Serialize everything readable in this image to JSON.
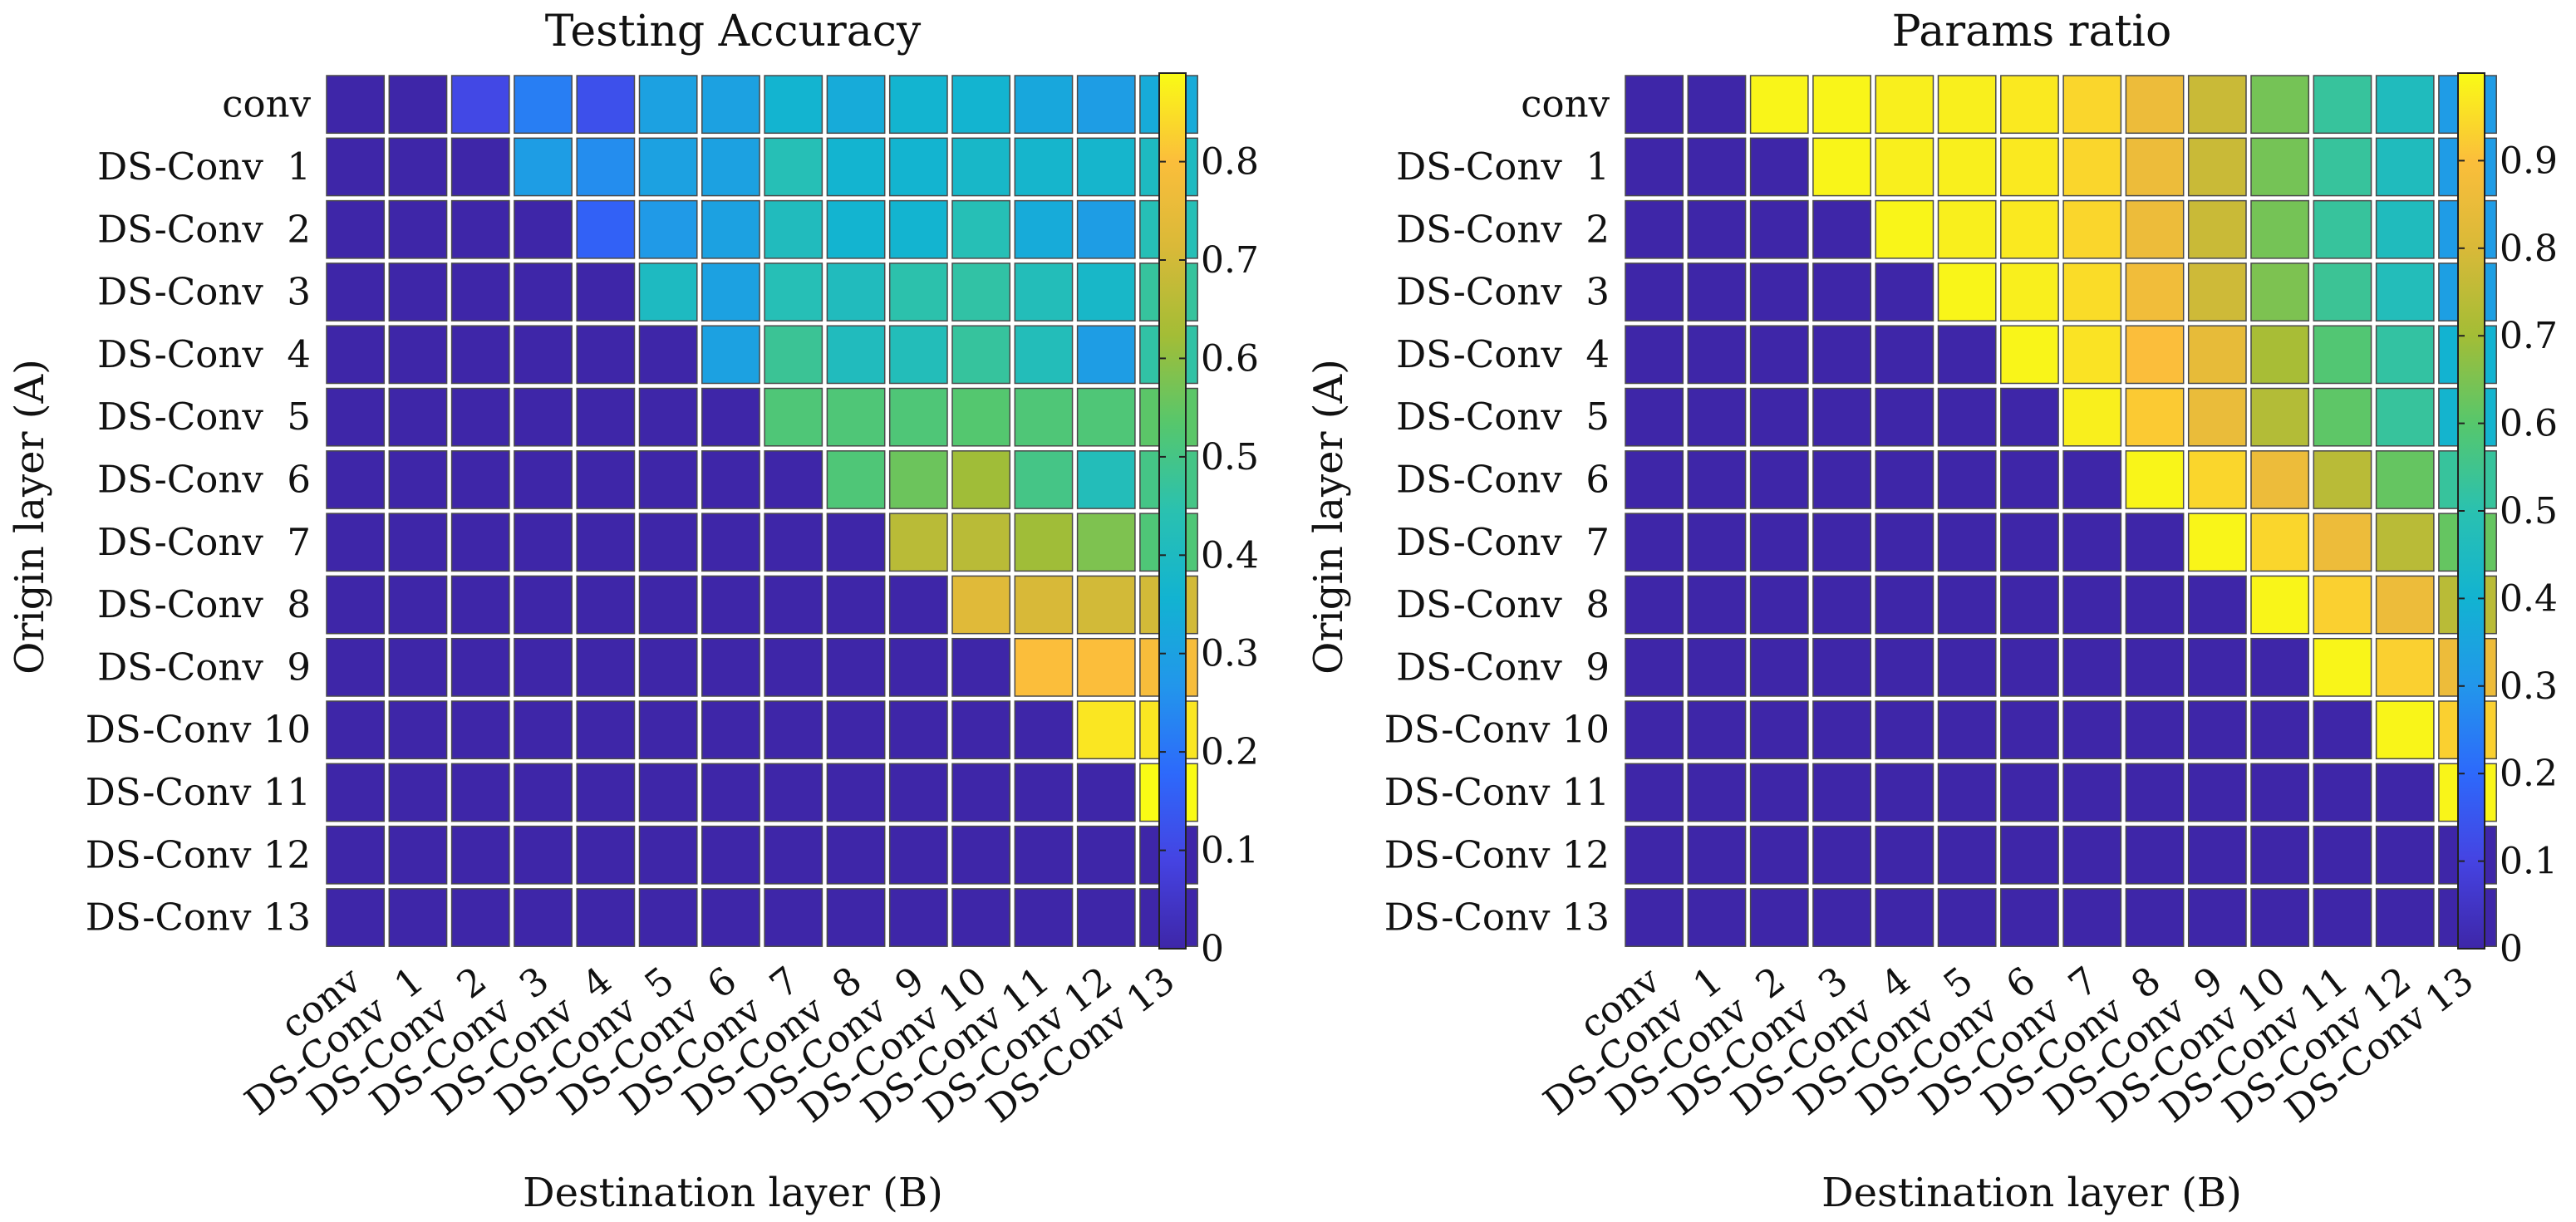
{
  "chart_data": [
    {
      "type": "heatmap",
      "title": "Testing Accuracy",
      "xlabel": "Destination layer (B)",
      "ylabel": "Origin layer (A)",
      "row_labels": [
        "conv",
        "DS-Conv  1",
        "DS-Conv  2",
        "DS-Conv  3",
        "DS-Conv  4",
        "DS-Conv  5",
        "DS-Conv  6",
        "DS-Conv  7",
        "DS-Conv  8",
        "DS-Conv  9",
        "DS-Conv 10",
        "DS-Conv 11",
        "DS-Conv 12",
        "DS-Conv 13"
      ],
      "col_labels": [
        "conv",
        "DS-Conv  1",
        "DS-Conv  2",
        "DS-Conv  3",
        "DS-Conv  4",
        "DS-Conv  5",
        "DS-Conv  6",
        "DS-Conv  7",
        "DS-Conv  8",
        "DS-Conv  9",
        "DS-Conv 10",
        "DS-Conv 11",
        "DS-Conv 12",
        "DS-Conv 13"
      ],
      "clim": [
        0,
        0.89
      ],
      "colorbar_ticks": [
        0,
        0.1,
        0.2,
        0.3,
        0.4,
        0.5,
        0.6,
        0.7,
        0.8
      ],
      "values": [
        [
          0,
          0,
          0.1,
          0.22,
          0.12,
          0.3,
          0.3,
          0.36,
          0.33,
          0.36,
          0.36,
          0.32,
          0.29,
          0.33
        ],
        [
          0,
          0,
          0,
          0.29,
          0.25,
          0.3,
          0.3,
          0.43,
          0.36,
          0.36,
          0.38,
          0.37,
          0.37,
          0.4
        ],
        [
          0,
          0,
          0,
          0,
          0.16,
          0.28,
          0.3,
          0.41,
          0.36,
          0.36,
          0.43,
          0.33,
          0.29,
          0.43
        ],
        [
          0,
          0,
          0,
          0,
          0,
          0.4,
          0.3,
          0.43,
          0.41,
          0.45,
          0.46,
          0.42,
          0.38,
          0.47
        ],
        [
          0,
          0,
          0,
          0,
          0,
          0,
          0.3,
          0.48,
          0.41,
          0.42,
          0.47,
          0.42,
          0.29,
          0.46
        ],
        [
          0,
          0,
          0,
          0,
          0,
          0,
          0,
          0.52,
          0.52,
          0.52,
          0.53,
          0.52,
          0.52,
          0.54
        ],
        [
          0,
          0,
          0,
          0,
          0,
          0,
          0,
          0,
          0.52,
          0.56,
          0.62,
          0.5,
          0.42,
          0.5
        ],
        [
          0,
          0,
          0,
          0,
          0,
          0,
          0,
          0,
          0,
          0.66,
          0.66,
          0.62,
          0.58,
          0.52
        ],
        [
          0,
          0,
          0,
          0,
          0,
          0,
          0,
          0,
          0,
          0,
          0.73,
          0.71,
          0.7,
          0.7
        ],
        [
          0,
          0,
          0,
          0,
          0,
          0,
          0,
          0,
          0,
          0,
          0,
          0.8,
          0.8,
          0.79
        ],
        [
          0,
          0,
          0,
          0,
          0,
          0,
          0,
          0,
          0,
          0,
          0,
          0,
          0.86,
          0.86
        ],
        [
          0,
          0,
          0,
          0,
          0,
          0,
          0,
          0,
          0,
          0,
          0,
          0,
          0,
          0.89
        ],
        [
          0,
          0,
          0,
          0,
          0,
          0,
          0,
          0,
          0,
          0,
          0,
          0,
          0,
          0
        ],
        [
          0,
          0,
          0,
          0,
          0,
          0,
          0,
          0,
          0,
          0,
          0,
          0,
          0,
          0
        ]
      ]
    },
    {
      "type": "heatmap",
      "title": "Params ratio",
      "xlabel": "Destination layer (B)",
      "ylabel": "Origin layer (A)",
      "row_labels": [
        "conv",
        "DS-Conv  1",
        "DS-Conv  2",
        "DS-Conv  3",
        "DS-Conv  4",
        "DS-Conv  5",
        "DS-Conv  6",
        "DS-Conv  7",
        "DS-Conv  8",
        "DS-Conv  9",
        "DS-Conv 10",
        "DS-Conv 11",
        "DS-Conv 12",
        "DS-Conv 13"
      ],
      "col_labels": [
        "conv",
        "DS-Conv  1",
        "DS-Conv  2",
        "DS-Conv  3",
        "DS-Conv  4",
        "DS-Conv  5",
        "DS-Conv  6",
        "DS-Conv  7",
        "DS-Conv  8",
        "DS-Conv  9",
        "DS-Conv 10",
        "DS-Conv 11",
        "DS-Conv 12",
        "DS-Conv 13"
      ],
      "clim": [
        0,
        1.0
      ],
      "colorbar_ticks": [
        0,
        0.1,
        0.2,
        0.3,
        0.4,
        0.5,
        0.6,
        0.7,
        0.8,
        0.9
      ],
      "values": [
        [
          0,
          0,
          0.99,
          0.99,
          0.98,
          0.98,
          0.97,
          0.94,
          0.86,
          0.77,
          0.64,
          0.53,
          0.46,
          0.32
        ],
        [
          0,
          0,
          0,
          0.99,
          0.98,
          0.98,
          0.97,
          0.94,
          0.86,
          0.77,
          0.64,
          0.53,
          0.46,
          0.32
        ],
        [
          0,
          0,
          0,
          0,
          0.99,
          0.98,
          0.97,
          0.94,
          0.86,
          0.77,
          0.64,
          0.53,
          0.46,
          0.32
        ],
        [
          0,
          0,
          0,
          0,
          0,
          0.99,
          0.98,
          0.95,
          0.87,
          0.78,
          0.65,
          0.54,
          0.47,
          0.33
        ],
        [
          0,
          0,
          0,
          0,
          0,
          0,
          0.99,
          0.96,
          0.9,
          0.84,
          0.71,
          0.59,
          0.52,
          0.4
        ],
        [
          0,
          0,
          0,
          0,
          0,
          0,
          0,
          0.98,
          0.92,
          0.85,
          0.73,
          0.61,
          0.53,
          0.41
        ],
        [
          0,
          0,
          0,
          0,
          0,
          0,
          0,
          0,
          0.99,
          0.94,
          0.86,
          0.74,
          0.62,
          0.53
        ],
        [
          0,
          0,
          0,
          0,
          0,
          0,
          0,
          0,
          0,
          0.99,
          0.94,
          0.86,
          0.74,
          0.62
        ],
        [
          0,
          0,
          0,
          0,
          0,
          0,
          0,
          0,
          0,
          0,
          0.99,
          0.93,
          0.86,
          0.74
        ],
        [
          0,
          0,
          0,
          0,
          0,
          0,
          0,
          0,
          0,
          0,
          0,
          0.99,
          0.93,
          0.86
        ],
        [
          0,
          0,
          0,
          0,
          0,
          0,
          0,
          0,
          0,
          0,
          0,
          0,
          0.99,
          0.93
        ],
        [
          0,
          0,
          0,
          0,
          0,
          0,
          0,
          0,
          0,
          0,
          0,
          0,
          0,
          0.99
        ],
        [
          0,
          0,
          0,
          0,
          0,
          0,
          0,
          0,
          0,
          0,
          0,
          0,
          0,
          0
        ],
        [
          0,
          0,
          0,
          0,
          0,
          0,
          0,
          0,
          0,
          0,
          0,
          0,
          0,
          0
        ]
      ]
    }
  ]
}
